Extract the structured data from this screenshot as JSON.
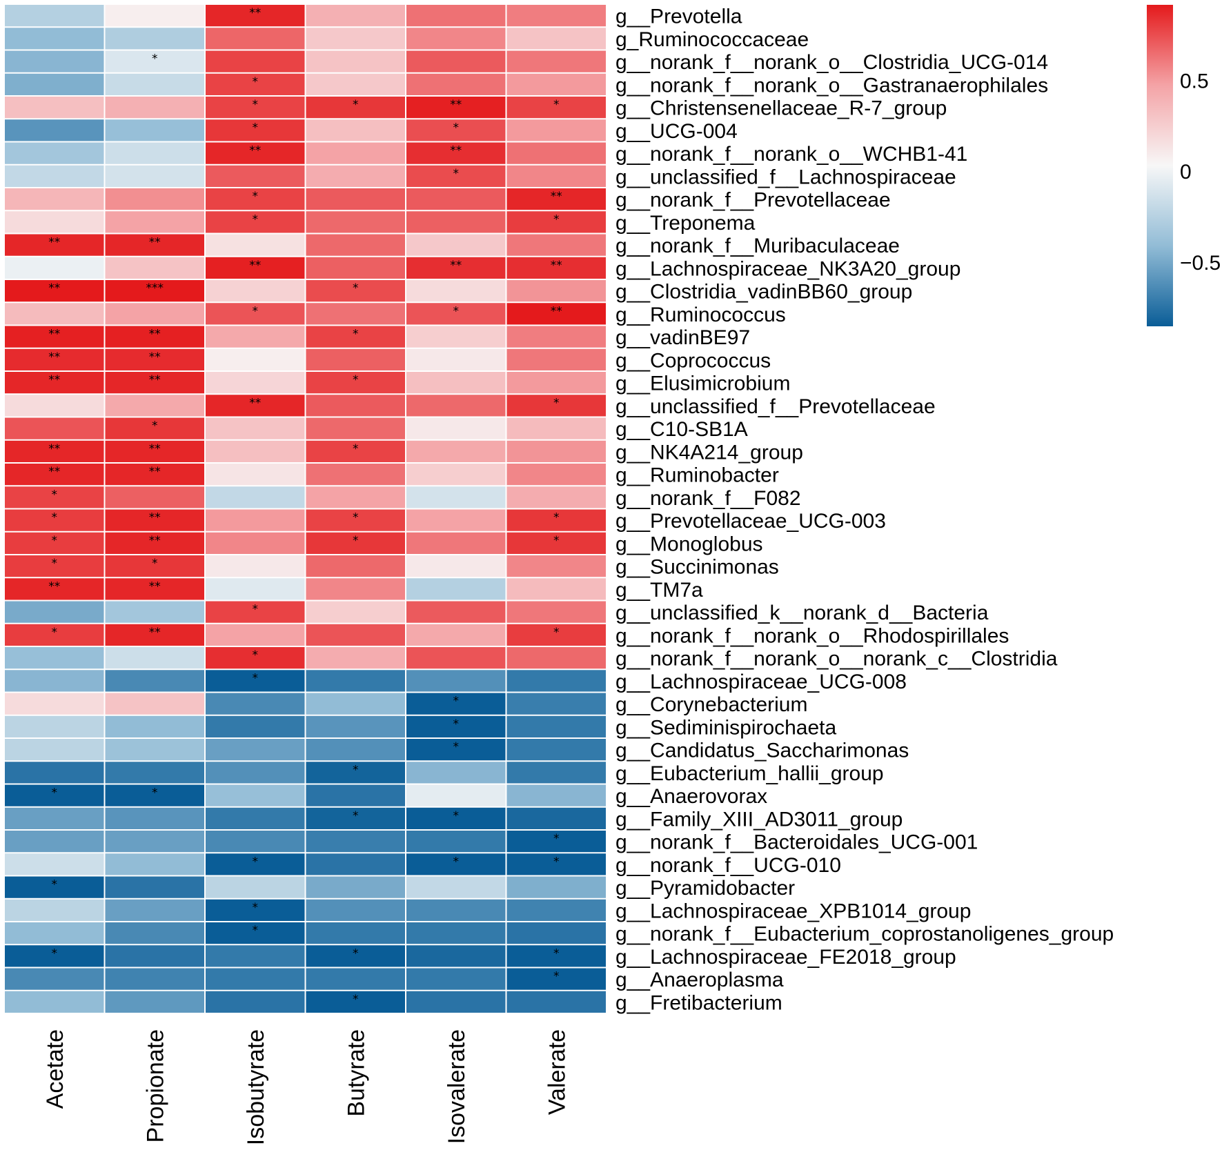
{
  "chart_data": {
    "type": "heatmap",
    "title": "",
    "columns": [
      "Acetate",
      "Propionate",
      "Isobutyrate",
      "Butyrate",
      "Isovalerate",
      "Valerate"
    ],
    "rows": [
      {
        "label": "g__Prevotella",
        "values": [
          -0.28,
          0.05,
          0.88,
          0.38,
          0.62,
          0.58
        ],
        "stars": [
          "",
          "",
          "**",
          "",
          "",
          ""
        ]
      },
      {
        "label": "g_Ruminococcaceae",
        "values": [
          -0.42,
          -0.3,
          0.66,
          0.25,
          0.55,
          0.28
        ],
        "stars": [
          "",
          "",
          "",
          "",
          "",
          ""
        ]
      },
      {
        "label": "g__norank_f__norank_o__Clostridia_UCG-014",
        "values": [
          -0.45,
          -0.12,
          0.78,
          0.28,
          0.7,
          0.6
        ],
        "stars": [
          "",
          "*",
          "",
          "",
          "",
          ""
        ]
      },
      {
        "label": "g__norank_f__norank_o__Gastranaerophilales",
        "values": [
          -0.48,
          -0.2,
          0.78,
          0.25,
          0.62,
          0.48
        ],
        "stars": [
          "",
          "",
          "*",
          "",
          "",
          ""
        ]
      },
      {
        "label": "g__Christensenellaceae_R-7_group",
        "values": [
          0.3,
          0.38,
          0.78,
          0.82,
          0.9,
          0.78
        ],
        "stars": [
          "",
          "",
          "*",
          "*",
          "**",
          "*"
        ]
      },
      {
        "label": "g__UCG-004",
        "values": [
          -0.6,
          -0.4,
          0.82,
          0.3,
          0.74,
          0.48
        ],
        "stars": [
          "",
          "",
          "*",
          "",
          "*",
          ""
        ]
      },
      {
        "label": "g__norank_f__norank_o__WCHB1-41",
        "values": [
          -0.35,
          -0.18,
          0.88,
          0.45,
          0.85,
          0.62
        ],
        "stars": [
          "",
          "",
          "**",
          "",
          "**",
          ""
        ]
      },
      {
        "label": "g__unclassified_f__Lachnospiraceae",
        "values": [
          -0.22,
          -0.15,
          0.7,
          0.4,
          0.75,
          0.55
        ],
        "stars": [
          "",
          "",
          "",
          "",
          "*",
          ""
        ]
      },
      {
        "label": "g__norank_f__Prevotellaceae",
        "values": [
          0.35,
          0.52,
          0.78,
          0.7,
          0.7,
          0.88
        ],
        "stars": [
          "",
          "",
          "*",
          "",
          "",
          "**"
        ]
      },
      {
        "label": "g__Treponema",
        "values": [
          0.15,
          0.45,
          0.78,
          0.65,
          0.68,
          0.8
        ],
        "stars": [
          "",
          "",
          "*",
          "",
          "",
          "*"
        ]
      },
      {
        "label": "g__norank_f__Muribaculaceae",
        "values": [
          0.88,
          0.88,
          0.12,
          0.65,
          0.25,
          0.6
        ],
        "stars": [
          "**",
          "**",
          "",
          "",
          "",
          ""
        ]
      },
      {
        "label": "g__Lachnospiraceae_NK3A20_group",
        "values": [
          -0.05,
          0.28,
          0.9,
          0.68,
          0.85,
          0.85
        ],
        "stars": [
          "",
          "",
          "**",
          "",
          "**",
          "**"
        ]
      },
      {
        "label": "g__Clostridia_vadinBB60_group",
        "values": [
          0.92,
          0.92,
          0.2,
          0.75,
          0.15,
          0.5
        ],
        "stars": [
          "**",
          "***",
          "",
          "*",
          "",
          ""
        ]
      },
      {
        "label": "g__Ruminococcus",
        "values": [
          0.32,
          0.45,
          0.72,
          0.62,
          0.72,
          0.92
        ],
        "stars": [
          "",
          "",
          "*",
          "",
          "*",
          "**"
        ]
      },
      {
        "label": "g__vadinBE97",
        "values": [
          0.9,
          0.9,
          0.42,
          0.78,
          0.22,
          0.58
        ],
        "stars": [
          "**",
          "**",
          "",
          "*",
          "",
          ""
        ]
      },
      {
        "label": "g__Coprococcus",
        "values": [
          0.86,
          0.86,
          0.05,
          0.68,
          0.08,
          0.6
        ],
        "stars": [
          "**",
          "**",
          "",
          "",
          "",
          ""
        ]
      },
      {
        "label": "g__Elusimicrobium",
        "values": [
          0.88,
          0.88,
          0.18,
          0.78,
          0.3,
          0.48
        ],
        "stars": [
          "**",
          "**",
          "",
          "*",
          "",
          ""
        ]
      },
      {
        "label": "g__unclassified_f__Prevotellaceae",
        "values": [
          0.15,
          0.42,
          0.88,
          0.7,
          0.65,
          0.82
        ],
        "stars": [
          "",
          "",
          "**",
          "",
          "",
          "*"
        ]
      },
      {
        "label": "g__C10-SB1A",
        "values": [
          0.72,
          0.82,
          0.28,
          0.65,
          0.08,
          0.32
        ],
        "stars": [
          "",
          "*",
          "",
          "",
          "",
          ""
        ]
      },
      {
        "label": "g__NK4A214_group",
        "values": [
          0.88,
          0.88,
          0.3,
          0.78,
          0.42,
          0.5
        ],
        "stars": [
          "**",
          "**",
          "",
          "*",
          "",
          ""
        ]
      },
      {
        "label": "g__Ruminobacter",
        "values": [
          0.88,
          0.88,
          0.1,
          0.62,
          0.22,
          0.55
        ],
        "stars": [
          "**",
          "**",
          "",
          "",
          "",
          ""
        ]
      },
      {
        "label": "g__norank_f__F082",
        "values": [
          0.78,
          0.68,
          -0.22,
          0.45,
          -0.15,
          0.4
        ],
        "stars": [
          "*",
          "",
          "",
          "",
          "",
          ""
        ]
      },
      {
        "label": "g__Prevotellaceae_UCG-003",
        "values": [
          0.8,
          0.88,
          0.48,
          0.78,
          0.45,
          0.82
        ],
        "stars": [
          "*",
          "**",
          "",
          "*",
          "",
          "*"
        ]
      },
      {
        "label": "g__Monoglobus",
        "values": [
          0.8,
          0.88,
          0.55,
          0.82,
          0.6,
          0.82
        ],
        "stars": [
          "*",
          "**",
          "",
          "*",
          "",
          "*"
        ]
      },
      {
        "label": "g__Succinimonas",
        "values": [
          0.8,
          0.82,
          0.08,
          0.65,
          0.08,
          0.55
        ],
        "stars": [
          "*",
          "*",
          "",
          "",
          "",
          ""
        ]
      },
      {
        "label": "g__TM7a",
        "values": [
          0.88,
          0.88,
          -0.1,
          0.55,
          -0.28,
          0.32
        ],
        "stars": [
          "**",
          "**",
          "",
          "",
          "",
          ""
        ]
      },
      {
        "label": "g__unclassified_k__norank_d__Bacteria",
        "values": [
          -0.5,
          -0.35,
          0.78,
          0.22,
          0.7,
          0.6
        ],
        "stars": [
          "",
          "",
          "*",
          "",
          "",
          ""
        ]
      },
      {
        "label": "g__norank_f__norank_o__Rhodospirillales",
        "values": [
          0.8,
          0.88,
          0.45,
          0.72,
          0.42,
          0.8
        ],
        "stars": [
          "*",
          "**",
          "",
          "",
          "",
          "*"
        ]
      },
      {
        "label": "g__norank_f__norank_o__norank_c__Clostridia",
        "values": [
          -0.4,
          -0.18,
          0.85,
          0.4,
          0.72,
          0.65
        ],
        "stars": [
          "",
          "",
          "*",
          "",
          "",
          ""
        ]
      },
      {
        "label": "g__Lachnospiraceae_UCG-008",
        "values": [
          -0.45,
          -0.65,
          -0.9,
          -0.72,
          -0.62,
          -0.72
        ],
        "stars": [
          "",
          "",
          "*",
          "",
          "",
          ""
        ]
      },
      {
        "label": "g__Corynebacterium",
        "values": [
          0.15,
          0.28,
          -0.65,
          -0.42,
          -0.88,
          -0.7
        ],
        "stars": [
          "",
          "",
          "",
          "",
          "*",
          ""
        ]
      },
      {
        "label": "g__Sediminispirochaeta",
        "values": [
          -0.25,
          -0.42,
          -0.72,
          -0.6,
          -0.88,
          -0.72
        ],
        "stars": [
          "",
          "",
          "",
          "",
          "*",
          ""
        ]
      },
      {
        "label": "g__Candidatus_Saccharimonas",
        "values": [
          -0.25,
          -0.38,
          -0.55,
          -0.62,
          -0.9,
          -0.72
        ],
        "stars": [
          "",
          "",
          "",
          "",
          "*",
          ""
        ]
      },
      {
        "label": "g__Eubacterium_hallii_group",
        "values": [
          -0.75,
          -0.72,
          -0.62,
          -0.82,
          -0.45,
          -0.72
        ],
        "stars": [
          "",
          "",
          "",
          "*",
          "",
          ""
        ]
      },
      {
        "label": "g__Anaerovorax",
        "values": [
          -0.88,
          -0.88,
          -0.4,
          -0.75,
          -0.08,
          -0.45
        ],
        "stars": [
          "*",
          "*",
          "",
          "",
          "",
          ""
        ]
      },
      {
        "label": "g__Family_XIII_AD3011_group",
        "values": [
          -0.55,
          -0.6,
          -0.72,
          -0.82,
          -0.92,
          -0.8
        ],
        "stars": [
          "",
          "",
          "",
          "*",
          "*",
          ""
        ]
      },
      {
        "label": "g__norank_f__Bacteroidales_UCG-001",
        "values": [
          -0.55,
          -0.55,
          -0.65,
          -0.7,
          -0.72,
          -0.88
        ],
        "stars": [
          "",
          "",
          "",
          "",
          "",
          "*"
        ]
      },
      {
        "label": "g__norank_f__UCG-010",
        "values": [
          -0.18,
          -0.42,
          -0.88,
          -0.75,
          -0.88,
          -0.88
        ],
        "stars": [
          "",
          "",
          "*",
          "",
          "*",
          "*"
        ]
      },
      {
        "label": "g__Pyramidobacter",
        "values": [
          -0.88,
          -0.75,
          -0.25,
          -0.5,
          -0.22,
          -0.48
        ],
        "stars": [
          "*",
          "",
          "",
          "",
          "",
          ""
        ]
      },
      {
        "label": "g__Lachnospiraceae_XPB1014_group",
        "values": [
          -0.25,
          -0.55,
          -0.85,
          -0.62,
          -0.65,
          -0.68
        ],
        "stars": [
          "",
          "",
          "*",
          "",
          "",
          ""
        ]
      },
      {
        "label": "g__norank_f__Eubacterium_coprostanoligenes_group",
        "values": [
          -0.42,
          -0.65,
          -0.88,
          -0.72,
          -0.72,
          -0.75
        ],
        "stars": [
          "",
          "",
          "*",
          "",
          "",
          ""
        ]
      },
      {
        "label": "g__Lachnospiraceae_FE2018_group",
        "values": [
          -0.88,
          -0.75,
          -0.72,
          -0.88,
          -0.8,
          -0.88
        ],
        "stars": [
          "*",
          "",
          "",
          "*",
          "",
          "*"
        ]
      },
      {
        "label": "g__Anaeroplasma",
        "values": [
          -0.65,
          -0.68,
          -0.72,
          -0.72,
          -0.72,
          -0.85
        ],
        "stars": [
          "",
          "",
          "",
          "",
          "",
          "*"
        ]
      },
      {
        "label": "g__Fretibacterium",
        "values": [
          -0.42,
          -0.58,
          -0.75,
          -0.88,
          -0.75,
          -0.75
        ],
        "stars": [
          "",
          "",
          "",
          "*",
          "",
          ""
        ]
      }
    ],
    "legend": {
      "ticks": [
        {
          "value": 0.5,
          "label": "0.5"
        },
        {
          "value": 0,
          "label": "0"
        },
        {
          "value": -0.5,
          "label": "−0.5"
        }
      ],
      "range": [
        -0.85,
        0.92
      ],
      "colors": {
        "low": "#0a5d97",
        "lowmid": "#92bcd6",
        "mid": "#f7f7f7",
        "highmid": "#f4a3a6",
        "high": "#e41a1c"
      }
    }
  }
}
